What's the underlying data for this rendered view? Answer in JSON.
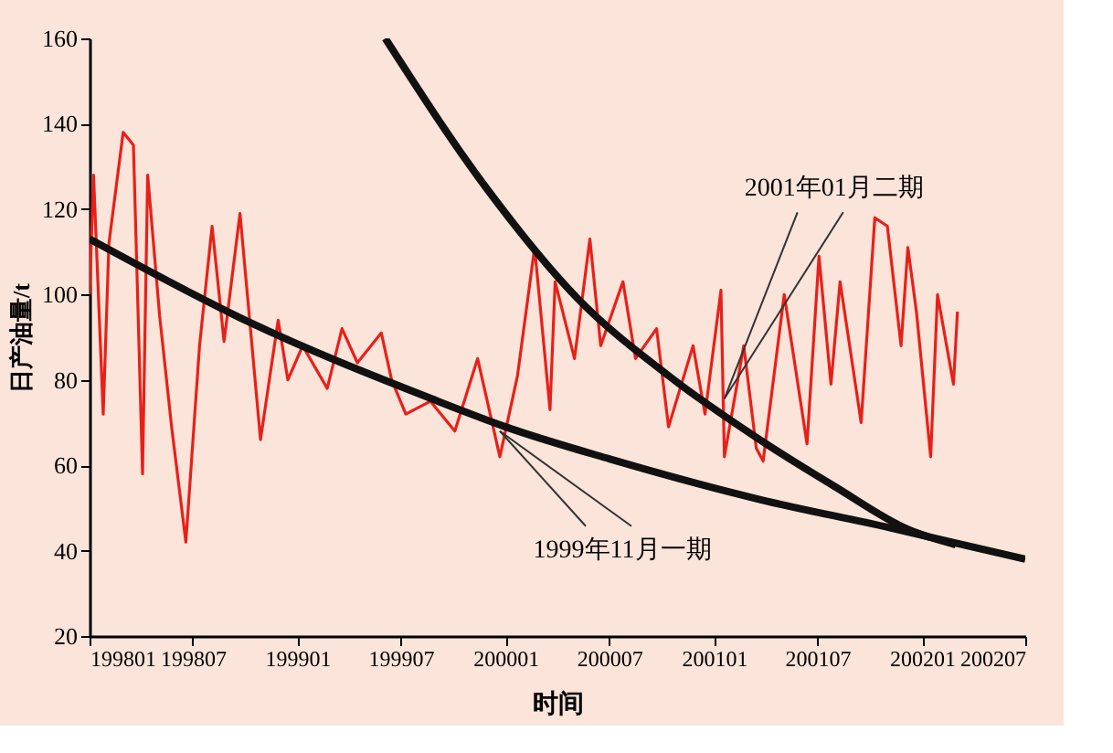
{
  "chart_data": {
    "type": "line",
    "xlabel": "时间",
    "ylabel": "日产油量/t",
    "xlim": [
      "1998-01",
      "2002-07"
    ],
    "xticks": [
      {
        "value": "1998-01",
        "label": "199801"
      },
      {
        "value": "1998-07",
        "label": "199807"
      },
      {
        "value": "1999-01",
        "label": "199901"
      },
      {
        "value": "1999-07",
        "label": "199907"
      },
      {
        "value": "2000-01",
        "label": "200001"
      },
      {
        "value": "2000-07",
        "label": "200007"
      },
      {
        "value": "2001-01",
        "label": "200101"
      },
      {
        "value": "2001-07",
        "label": "200107"
      },
      {
        "value": "2002-01",
        "label": "200201"
      },
      {
        "value": "2002-07",
        "label": "200207"
      }
    ],
    "ylim": [
      20,
      160
    ],
    "yticks": [
      20,
      40,
      60,
      80,
      100,
      120,
      140,
      160
    ],
    "grid": false,
    "line_style": "solid",
    "marker": "none",
    "series": [
      {
        "color": "#e8201a",
        "x": [
          "1998-01-01",
          "1998-01-08",
          "1998-01-25",
          "1998-02-04",
          "1998-03-01",
          "1998-03-19",
          "1998-04-04",
          "1998-04-13",
          "1998-05-04",
          "1998-05-25",
          "1998-06-19",
          "1998-07-13",
          "1998-08-04",
          "1998-08-25",
          "1998-09-22",
          "1998-10-28",
          "1998-11-28",
          "1998-12-15",
          "1999-01-10",
          "1999-02-22",
          "1999-03-20",
          "1999-04-16",
          "1999-05-28",
          "1999-06-15",
          "1999-07-10",
          "1999-08-22",
          "1999-10-04",
          "1999-11-13",
          "1999-12-22",
          "2000-01-22",
          "2000-02-21",
          "2000-03-19",
          "2000-03-28",
          "2000-05-01",
          "2000-05-28",
          "2000-06-16",
          "2000-07-25",
          "2000-08-16",
          "2000-09-22",
          "2000-10-13",
          "2000-11-25",
          "2000-12-16",
          "2001-01-13",
          "2001-01-19",
          "2001-02-22",
          "2001-03-16",
          "2001-03-28",
          "2001-05-04",
          "2001-06-13",
          "2001-07-04",
          "2001-07-25",
          "2001-08-10",
          "2001-09-16",
          "2001-10-10",
          "2001-11-01",
          "2001-11-25",
          "2001-12-07",
          "2001-12-22",
          "2002-01-16",
          "2002-01-28",
          "2002-02-25",
          "2002-03-04"
        ],
        "values": [
          100,
          128,
          72,
          112,
          138,
          135,
          58,
          128,
          95,
          69,
          42,
          88,
          116,
          89,
          119,
          66,
          94,
          80,
          88,
          78,
          92,
          84,
          91,
          80,
          72,
          75,
          68,
          85,
          62,
          81,
          111,
          73,
          103,
          85,
          113,
          88,
          103,
          85,
          92,
          69,
          88,
          72,
          101,
          62,
          88,
          64,
          61,
          100,
          65,
          109,
          79,
          103,
          70,
          118,
          116,
          88,
          111,
          96,
          62,
          100,
          79,
          96
        ]
      },
      {
        "color": "#111111",
        "x": [
          "1998-01-01",
          "1998-10-07",
          "1999-08-22",
          "2000-01-01",
          "2000-07-01",
          "2001-03-22",
          "2001-11-01",
          "2002-07-01"
        ],
        "values": [
          113,
          93.6,
          75.7,
          69,
          61.5,
          52,
          45.5,
          38
        ]
      },
      {
        "color": "#111111",
        "x": [
          "1999-06-04",
          "1999-11-28",
          "2000-05-07",
          "2000-10-13",
          "2001-03-22",
          "2001-08-01",
          "2001-12-07",
          "2002-03-01"
        ],
        "values": [
          160,
          125,
          99,
          81,
          66,
          55,
          45,
          41.4
        ]
      }
    ],
    "annotations": [
      {
        "text": "1999年11月一期",
        "x": "1999-12-22",
        "y": 68
      },
      {
        "text": "2001年01月二期",
        "x": "2001-01-19",
        "y": 75.6
      }
    ]
  }
}
